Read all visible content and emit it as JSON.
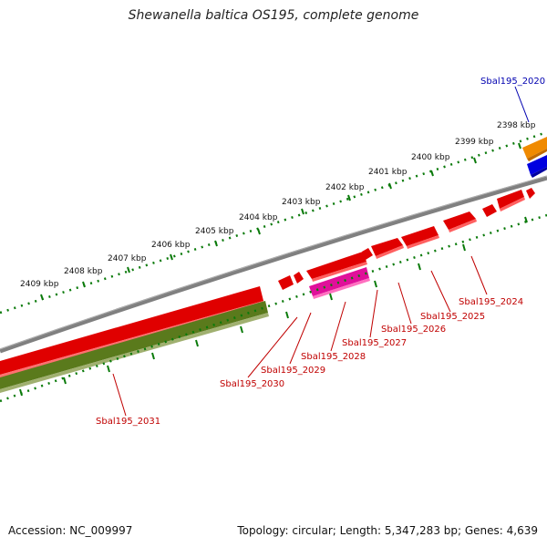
{
  "title": "Shewanella baltica OS195, complete genome",
  "footer": {
    "accession": "Accession: NC_009997",
    "summary": "Topology: circular; Length: 5,347,283 bp; Genes: 4,639"
  },
  "scale_labels": [
    "2398 kbp",
    "2399 kbp",
    "2400 kbp",
    "2401 kbp",
    "2402 kbp",
    "2403 kbp",
    "2404 kbp",
    "2405 kbp",
    "2406 kbp",
    "2407 kbp",
    "2408 kbp",
    "2409 kbp"
  ],
  "gene_labels": [
    {
      "text": "Sbal195_2020",
      "color": "#0000b0"
    },
    {
      "text": "Sbal195_2024",
      "color": "#c00000"
    },
    {
      "text": "Sbal195_2025",
      "color": "#c00000"
    },
    {
      "text": "Sbal195_2026",
      "color": "#c00000"
    },
    {
      "text": "Sbal195_2027",
      "color": "#c00000"
    },
    {
      "text": "Sbal195_2028",
      "color": "#c00000"
    },
    {
      "text": "Sbal195_2029",
      "color": "#c00000"
    },
    {
      "text": "Sbal195_2030",
      "color": "#c00000"
    },
    {
      "text": "Sbal195_2031",
      "color": "#c00000"
    }
  ],
  "colors": {
    "backbone": "#808080",
    "gene_red": "#e00000",
    "gene_magenta": "#e0109a",
    "gene_olive": "#5a7a1c",
    "gene_orange": "#f08a00",
    "gene_blue": "#0000e0",
    "tick": "#0a7a0a"
  }
}
